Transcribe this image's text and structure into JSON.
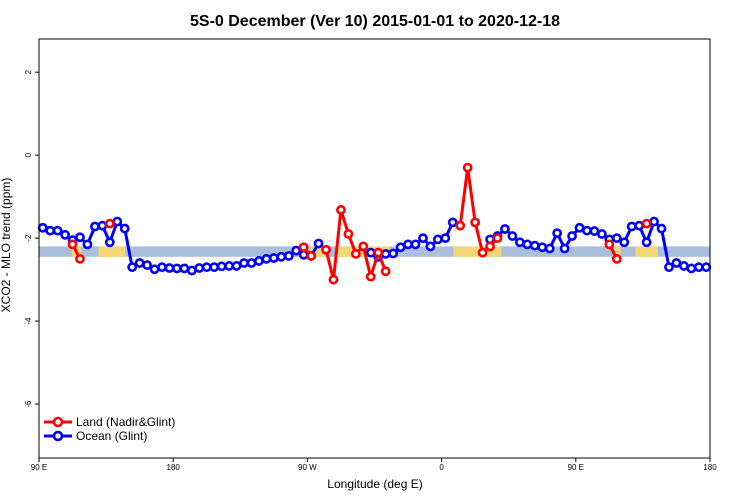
{
  "chart_data": {
    "type": "line",
    "title": "5S-0 December (Ver 10)   2015-01-01 to 2020-12-18",
    "xlabel": "Longitude (deg E)",
    "ylabel": "XCO2 - MLO trend (ppm)",
    "xlim": [
      90,
      540
    ],
    "ylim": [
      -7.3,
      2.8
    ],
    "x_ticks": [
      {
        "value": 90,
        "label": "90 E"
      },
      {
        "value": 180,
        "label": "180"
      },
      {
        "value": 270,
        "label": "90 W"
      },
      {
        "value": 360,
        "label": "0"
      },
      {
        "value": 450,
        "label": "90 E"
      },
      {
        "value": 540,
        "label": "180"
      }
    ],
    "y_ticks": [
      {
        "value": 2,
        "label": "2"
      },
      {
        "value": 0,
        "label": "0"
      },
      {
        "value": -2,
        "label": "-2"
      },
      {
        "value": -4,
        "label": "-4"
      },
      {
        "value": -6,
        "label": "-6"
      }
    ],
    "band": {
      "ymin": -2.45,
      "ymax": -2.2,
      "color": "#a9bfdc",
      "land_color": "#f5d77a"
    },
    "legend": {
      "position": "bottom-left",
      "entries": [
        {
          "label": "Land (Nadir&Glint)",
          "color": "#ff0000"
        },
        {
          "label": "Ocean (Glint)",
          "color": "#0000ff"
        }
      ]
    },
    "series": [
      {
        "name": "Ocean (Glint)",
        "color": "#0000ff",
        "segments": [
          [
            [
              92.5,
              -1.75
            ],
            [
              97.5,
              -1.82
            ],
            [
              102.5,
              -1.82
            ],
            [
              107.5,
              -1.92
            ],
            [
              112.5,
              -2.05
            ],
            [
              117.5,
              -1.98
            ],
            [
              122.5,
              -2.15
            ],
            [
              127.5,
              -1.72
            ],
            [
              132.5,
              -1.7
            ],
            [
              137.5,
              -2.1
            ],
            [
              142.5,
              -1.6
            ],
            [
              147.5,
              -1.77
            ],
            [
              152.5,
              -2.7
            ],
            [
              157.5,
              -2.6
            ],
            [
              162.5,
              -2.65
            ],
            [
              167.5,
              -2.75
            ],
            [
              172.5,
              -2.7
            ],
            [
              177.5,
              -2.72
            ],
            [
              182.5,
              -2.73
            ],
            [
              187.5,
              -2.73
            ],
            [
              192.5,
              -2.78
            ],
            [
              197.5,
              -2.72
            ],
            [
              202.5,
              -2.7
            ],
            [
              207.5,
              -2.7
            ],
            [
              212.5,
              -2.68
            ],
            [
              217.5,
              -2.67
            ],
            [
              222.5,
              -2.67
            ],
            [
              227.5,
              -2.6
            ],
            [
              232.5,
              -2.6
            ],
            [
              237.5,
              -2.55
            ],
            [
              242.5,
              -2.5
            ],
            [
              247.5,
              -2.48
            ],
            [
              252.5,
              -2.45
            ],
            [
              257.5,
              -2.43
            ],
            [
              262.5,
              -2.3
            ],
            [
              267.5,
              -2.4
            ],
            [
              272.5,
              -2.43
            ],
            [
              277.5,
              -2.13
            ]
          ],
          [
            [
              312.5,
              -2.35
            ],
            [
              317.5,
              -2.45
            ],
            [
              322.5,
              -2.38
            ],
            [
              327.5,
              -2.37
            ],
            [
              332.5,
              -2.22
            ],
            [
              337.5,
              -2.15
            ],
            [
              342.5,
              -2.15
            ],
            [
              347.5,
              -2.0
            ],
            [
              352.5,
              -2.2
            ],
            [
              357.5,
              -2.03
            ],
            [
              362.5,
              -2.0
            ],
            [
              367.5,
              -1.62
            ]
          ],
          [
            [
              392.5,
              -2.03
            ],
            [
              397.5,
              -1.95
            ],
            [
              402.5,
              -1.78
            ],
            [
              407.5,
              -1.95
            ],
            [
              412.5,
              -2.1
            ],
            [
              417.5,
              -2.15
            ],
            [
              422.5,
              -2.18
            ],
            [
              427.5,
              -2.22
            ],
            [
              432.5,
              -2.25
            ],
            [
              437.5,
              -1.88
            ],
            [
              442.5,
              -2.25
            ],
            [
              447.5,
              -1.95
            ],
            [
              452.5,
              -1.75
            ],
            [
              457.5,
              -1.82
            ],
            [
              462.5,
              -1.83
            ],
            [
              467.5,
              -1.9
            ],
            [
              472.5,
              -2.03
            ],
            [
              477.5,
              -2.0
            ],
            [
              482.5,
              -2.1
            ],
            [
              487.5,
              -1.72
            ],
            [
              492.5,
              -1.7
            ],
            [
              497.5,
              -2.1
            ],
            [
              502.5,
              -1.6
            ],
            [
              507.5,
              -1.77
            ],
            [
              512.5,
              -2.7
            ],
            [
              517.5,
              -2.6
            ],
            [
              522.5,
              -2.67
            ],
            [
              527.5,
              -2.73
            ],
            [
              532.5,
              -2.7
            ],
            [
              537.5,
              -2.7
            ]
          ]
        ]
      },
      {
        "name": "Land (Nadir&Glint)",
        "color": "#ff0000",
        "segments": [
          [
            [
              112.5,
              -2.15
            ],
            [
              117.5,
              -2.5
            ]
          ],
          [
            [
              137.5,
              -1.65
            ]
          ],
          [
            [
              267.5,
              -2.22
            ],
            [
              272.5,
              -2.43
            ]
          ],
          [
            [
              282.5,
              -2.28
            ],
            [
              287.5,
              -3.0
            ],
            [
              292.5,
              -1.32
            ],
            [
              297.5,
              -1.9
            ],
            [
              302.5,
              -2.38
            ],
            [
              307.5,
              -2.2
            ],
            [
              312.5,
              -2.93
            ],
            [
              317.5,
              -2.35
            ],
            [
              322.5,
              -2.8
            ]
          ],
          [
            [
              372.5,
              -1.7
            ],
            [
              377.5,
              -0.3
            ],
            [
              382.5,
              -1.62
            ],
            [
              387.5,
              -2.35
            ],
            [
              392.5,
              -2.2
            ],
            [
              397.5,
              -2.0
            ]
          ],
          [
            [
              472.5,
              -2.15
            ],
            [
              477.5,
              -2.5
            ]
          ],
          [
            [
              497.5,
              -1.65
            ]
          ]
        ]
      }
    ]
  }
}
